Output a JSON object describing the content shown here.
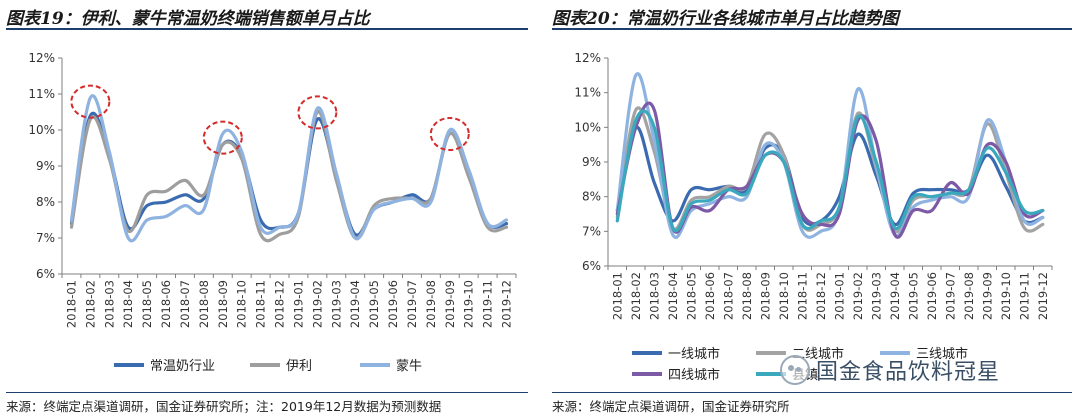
{
  "left_panel": {
    "title": "图表19：伊利、蒙牛常温奶终端销售额单月占比",
    "source": "来源：终端定点渠道调研，国金证券研究所；注：2019年12月数据为预测数据"
  },
  "right_panel": {
    "title": "图表20：常温奶行业各线城市单月占比趋势图",
    "source": "来源：终端定点渠道调研，国金证券研究所"
  },
  "watermark": {
    "text": "国金食品饮料冠星",
    "icon": "wechat-icon"
  },
  "chart_data": [
    {
      "type": "line",
      "title": "",
      "xlabel": "",
      "ylabel": "",
      "ylim": [
        6,
        12
      ],
      "yticks": [
        "6%",
        "7%",
        "8%",
        "9%",
        "10%",
        "11%",
        "12%"
      ],
      "grid": false,
      "legend_position": "bottom",
      "categories": [
        "2018-01",
        "2018-02",
        "2018-03",
        "2018-04",
        "2018-05",
        "2018-06",
        "2018-07",
        "2018-08",
        "2018-09",
        "2018-10",
        "2018-11",
        "2018-12",
        "2019-01",
        "2019-02",
        "2019-03",
        "2019-04",
        "2019-05",
        "2019-06",
        "2019-07",
        "2019-08",
        "2019-09",
        "2019-10",
        "2019-11",
        "2019-12"
      ],
      "series": [
        {
          "name": "常温奶行业",
          "color": "#3a6bb0",
          "values": [
            7.4,
            10.4,
            9.3,
            7.3,
            7.9,
            8.0,
            8.2,
            8.1,
            9.6,
            9.3,
            7.5,
            7.3,
            7.7,
            10.3,
            8.7,
            7.1,
            7.8,
            8.0,
            8.2,
            8.1,
            9.9,
            8.8,
            7.4,
            7.4
          ]
        },
        {
          "name": "伊利",
          "color": "#9e9e9e",
          "values": [
            7.3,
            10.3,
            9.2,
            7.2,
            8.2,
            8.3,
            8.6,
            8.2,
            9.6,
            9.2,
            7.1,
            7.1,
            7.6,
            10.5,
            8.6,
            7.0,
            7.9,
            8.1,
            8.1,
            8.1,
            9.9,
            8.7,
            7.3,
            7.3
          ]
        },
        {
          "name": "蒙牛",
          "color": "#8fb3e0",
          "values": [
            7.5,
            10.9,
            9.4,
            7.0,
            7.5,
            7.6,
            7.9,
            7.8,
            9.9,
            9.4,
            7.3,
            7.3,
            7.7,
            10.6,
            8.8,
            7.0,
            7.8,
            8.0,
            8.1,
            8.0,
            10.0,
            8.9,
            7.4,
            7.5
          ]
        }
      ],
      "annotations": [
        {
          "category": "2018-02",
          "shape": "dashed-ellipse",
          "color": "#d62b2b"
        },
        {
          "category": "2018-09",
          "shape": "dashed-ellipse",
          "color": "#d62b2b"
        },
        {
          "category": "2019-02",
          "shape": "dashed-ellipse",
          "color": "#d62b2b"
        },
        {
          "category": "2019-09",
          "shape": "dashed-ellipse",
          "color": "#d62b2b"
        }
      ]
    },
    {
      "type": "line",
      "title": "",
      "xlabel": "",
      "ylabel": "",
      "ylim": [
        6,
        12
      ],
      "yticks": [
        "6%",
        "7%",
        "8%",
        "9%",
        "10%",
        "11%",
        "12%"
      ],
      "grid": false,
      "legend_position": "bottom",
      "categories": [
        "2018-01",
        "2018-02",
        "2018-03",
        "2018-04",
        "2018-05",
        "2018-06",
        "2018-07",
        "2018-08",
        "2018-09",
        "2018-10",
        "2018-11",
        "2018-12",
        "2019-01",
        "2019-02",
        "2019-03",
        "2019-04",
        "2019-05",
        "2019-06",
        "2019-07",
        "2019-08",
        "2019-09",
        "2019-10",
        "2019-11",
        "2019-12"
      ],
      "series": [
        {
          "name": "一线城市",
          "color": "#3a6bb0",
          "values": [
            7.6,
            10.0,
            8.4,
            7.3,
            8.2,
            8.2,
            8.3,
            8.2,
            9.4,
            9.2,
            7.4,
            7.3,
            8.0,
            9.8,
            8.6,
            7.2,
            8.1,
            8.2,
            8.2,
            8.2,
            9.2,
            8.3,
            7.3,
            7.4
          ]
        },
        {
          "name": "二线城市",
          "color": "#a3a3a3",
          "values": [
            7.4,
            10.5,
            9.3,
            7.1,
            7.9,
            8.0,
            8.3,
            8.3,
            9.8,
            9.2,
            7.2,
            7.2,
            7.7,
            10.4,
            8.8,
            7.0,
            7.9,
            8.0,
            8.1,
            8.2,
            10.1,
            8.7,
            7.1,
            7.2
          ]
        },
        {
          "name": "三线城市",
          "color": "#8fb3e0",
          "values": [
            7.6,
            11.5,
            9.6,
            6.9,
            7.6,
            7.8,
            8.0,
            8.0,
            9.5,
            9.0,
            7.0,
            7.0,
            7.6,
            11.1,
            8.9,
            6.9,
            7.7,
            7.9,
            8.0,
            8.0,
            10.2,
            9.0,
            7.3,
            7.4
          ]
        },
        {
          "name": "四线城市",
          "color": "#7c5aa6",
          "values": [
            7.5,
            10.0,
            10.5,
            7.1,
            7.7,
            7.6,
            8.2,
            8.3,
            9.2,
            9.0,
            7.5,
            7.2,
            7.5,
            10.2,
            9.6,
            6.9,
            7.6,
            7.6,
            8.4,
            8.1,
            9.5,
            9.0,
            7.5,
            7.6
          ]
        },
        {
          "name": "县镇",
          "color": "#3aa9bd",
          "values": [
            7.3,
            10.2,
            10.0,
            7.1,
            7.8,
            7.9,
            8.2,
            8.1,
            9.2,
            9.0,
            7.2,
            7.3,
            7.7,
            10.3,
            9.0,
            7.1,
            8.0,
            8.0,
            8.1,
            8.2,
            9.4,
            8.7,
            7.6,
            7.6
          ]
        }
      ]
    }
  ]
}
